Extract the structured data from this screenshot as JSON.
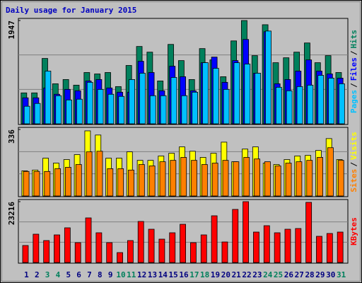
{
  "chart_data": [
    {
      "type": "bar",
      "title": "Daily usage for January 2015",
      "legend_separator": "/",
      "ylim": [
        0,
        1947
      ],
      "yticks": [
        1947
      ],
      "series": [
        {
          "name": "Hits",
          "color": "#00805c",
          "values": [
            583,
            583,
            1232,
            755,
            835,
            729,
            967,
            940,
            967,
            702,
            1100,
            1458,
            1351,
            808,
            1497,
            1192,
            835,
            1418,
            1205,
            888,
            1563,
            1947,
            1285,
            1868,
            1152,
            1245,
            1351,
            1524,
            1152,
            1285,
            967
          ]
        },
        {
          "name": "Files",
          "color": "#0000ff",
          "values": [
            490,
            490,
            676,
            557,
            649,
            623,
            808,
            835,
            676,
            596,
            596,
            1179,
            967,
            623,
            1086,
            888,
            623,
            1152,
            1258,
            782,
            1192,
            1590,
            954,
            1736,
            755,
            835,
            994,
            1205,
            994,
            940,
            861
          ]
        },
        {
          "name": "Pages",
          "color": "#00c0ff",
          "values": [
            331,
            384,
            994,
            530,
            450,
            464,
            782,
            649,
            557,
            517,
            835,
            954,
            530,
            530,
            874,
            530,
            596,
            1152,
            1046,
            649,
            1152,
            1126,
            954,
            1749,
            689,
            623,
            702,
            729,
            914,
            861,
            755
          ]
        }
      ]
    },
    {
      "type": "bar",
      "ylim": [
        0,
        336
      ],
      "yticks": [
        336
      ],
      "series": [
        {
          "name": "Visits",
          "color": "#ffff00",
          "values": [
            127,
            131,
            191,
            166,
            184,
            209,
            329,
            308,
            191,
            191,
            223,
            180,
            180,
            202,
            216,
            248,
            226,
            195,
            216,
            272,
            173,
            237,
            248,
            166,
            159,
            184,
            202,
            205,
            230,
            290,
            184
          ]
        },
        {
          "name": "Sites",
          "color": "#ff8000",
          "values": [
            124,
            124,
            124,
            138,
            145,
            159,
            223,
            226,
            138,
            138,
            131,
            159,
            152,
            173,
            180,
            195,
            180,
            159,
            166,
            180,
            173,
            195,
            187,
            173,
            152,
            166,
            173,
            180,
            195,
            244,
            180
          ]
        }
      ]
    },
    {
      "type": "bar",
      "ylim": [
        0,
        23216
      ],
      "yticks": [
        23216
      ],
      "categories": [
        "1",
        "2",
        "3",
        "4",
        "5",
        "6",
        "7",
        "8",
        "9",
        "10",
        "11",
        "12",
        "13",
        "14",
        "15",
        "16",
        "17",
        "18",
        "19",
        "20",
        "21",
        "22",
        "23",
        "24",
        "25",
        "26",
        "27",
        "28",
        "29",
        "30",
        "31"
      ],
      "category_label_colors": [
        "#000080",
        "#000080",
        "#00805c",
        "#00805c",
        "#000080",
        "#000080",
        "#000080",
        "#000080",
        "#000080",
        "#00805c",
        "#00805c",
        "#000080",
        "#000080",
        "#000080",
        "#000080",
        "#000080",
        "#00805c",
        "#00805c",
        "#000080",
        "#000080",
        "#000080",
        "#000080",
        "#000080",
        "#00805c",
        "#00805c",
        "#000080",
        "#000080",
        "#000080",
        "#000080",
        "#000080",
        "#00805c"
      ],
      "series": [
        {
          "name": "KBytes",
          "color": "#ff0000",
          "values": [
            6480,
            10800,
            8370,
            10530,
            13230,
            7560,
            17010,
            11340,
            7560,
            3780,
            8370,
            15660,
            12690,
            8910,
            11340,
            14580,
            7560,
            10530,
            17820,
            7830,
            20250,
            23216,
            11610,
            14040,
            11340,
            12690,
            12960,
            22950,
            9990,
            11070,
            11610
          ]
        }
      ]
    }
  ]
}
